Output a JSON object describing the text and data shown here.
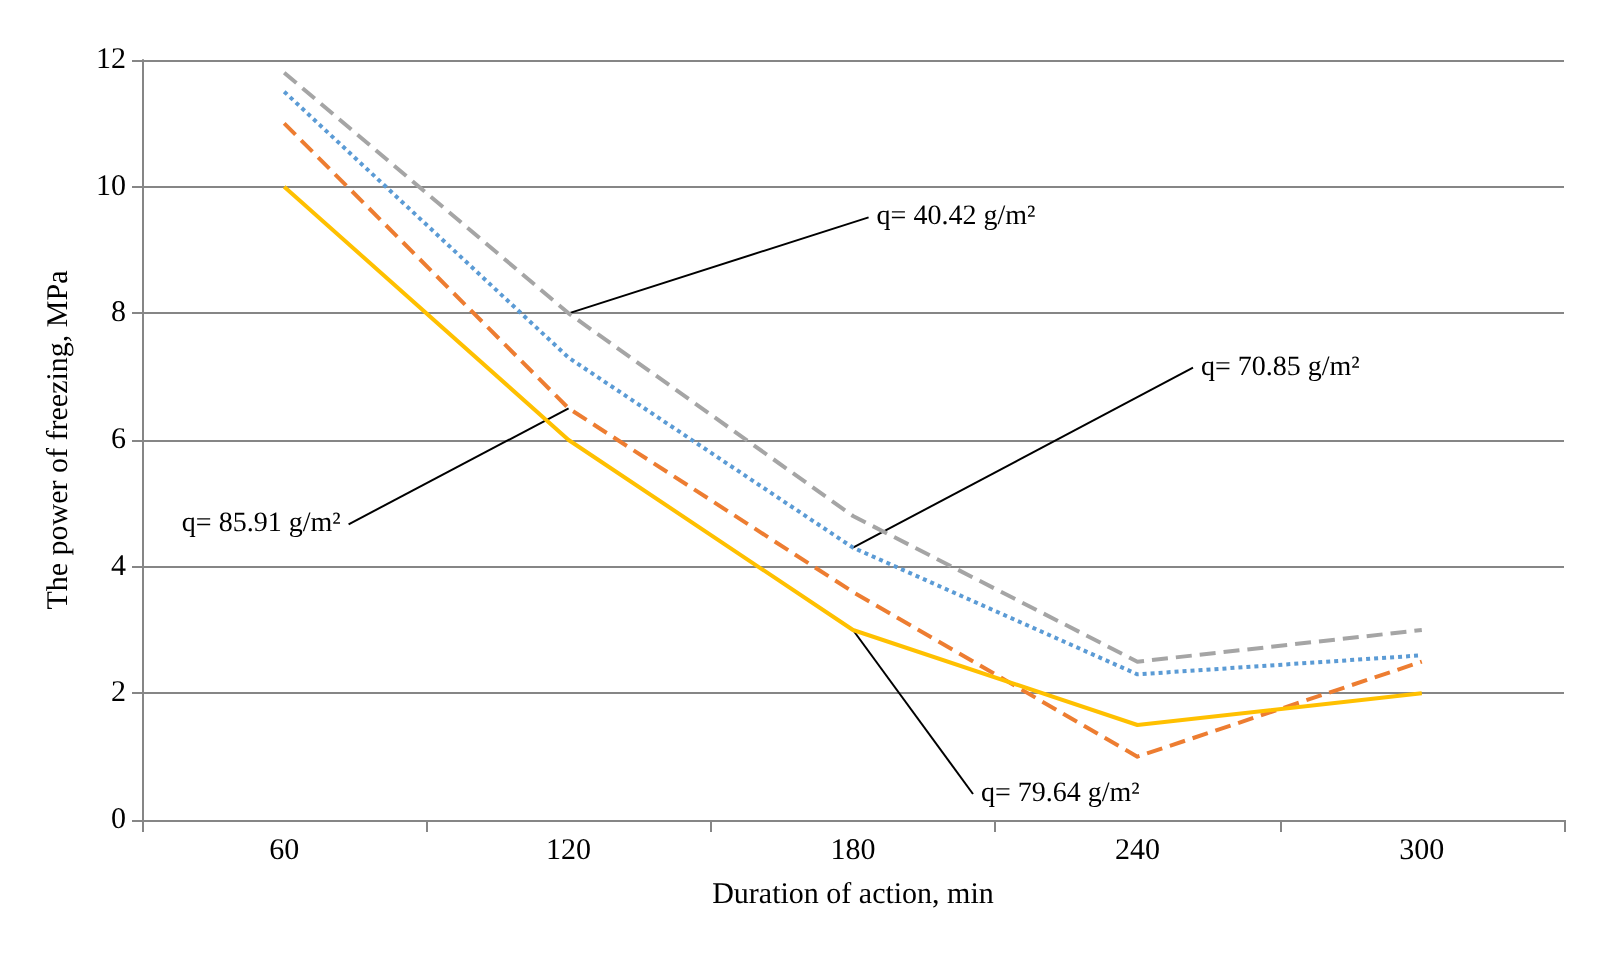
{
  "chart_data": {
    "type": "line",
    "xlabel": "Duration of action, min",
    "ylabel": "The power of freezing, MPa",
    "categories": [
      "60",
      "120",
      "180",
      "240",
      "300"
    ],
    "series": [
      {
        "color": "#a5a5a5",
        "line_style": "dashed",
        "values": [
          11.8,
          8.0,
          4.8,
          2.5,
          3.0
        ]
      },
      {
        "color": "#5b9bd5",
        "line_style": "dotted",
        "values": [
          11.5,
          7.3,
          4.3,
          2.3,
          2.6
        ]
      },
      {
        "color": "#ed7d31",
        "line_style": "dashed",
        "values": [
          11.0,
          6.5,
          3.6,
          1.0,
          2.5
        ]
      },
      {
        "color": "#ffc000",
        "line_style": "solid",
        "values": [
          10.0,
          6.0,
          3.0,
          1.5,
          2.0
        ]
      }
    ],
    "ylim": [
      0,
      12
    ],
    "yticks": [
      0,
      2,
      4,
      6,
      8,
      10,
      12
    ],
    "grid": "y",
    "marker": "none",
    "annotations": [
      {
        "text": "q= 40.42 g/m²",
        "x": "120",
        "y": 8.0
      },
      {
        "text": "q= 70.85 g/m²",
        "x": "180",
        "y": 4.3
      },
      {
        "text": "q= 85.91 g/m²",
        "x": "120",
        "y": 6.5
      },
      {
        "text": "q= 79.64 g/m²",
        "x": "180",
        "y": 3.0
      }
    ]
  }
}
